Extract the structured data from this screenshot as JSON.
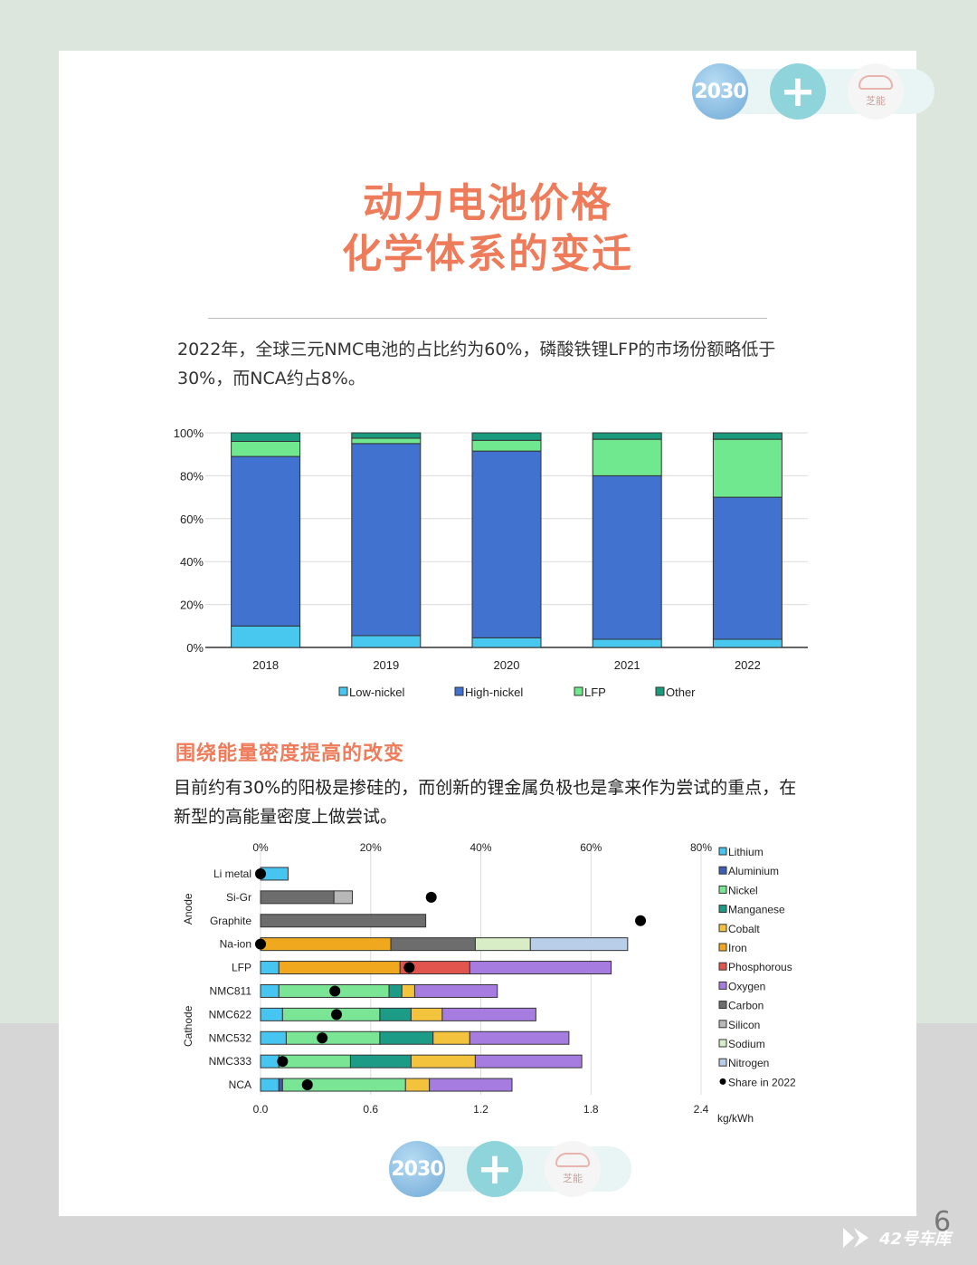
{
  "header": {
    "logos": [
      {
        "name": "logo-2030",
        "text": "2030"
      },
      {
        "name": "logo-plus",
        "text": "+"
      },
      {
        "name": "logo-brand",
        "text": "芝能"
      }
    ]
  },
  "title": {
    "line1": "动力电池价格",
    "line2": "化学体系的变迁"
  },
  "intro": "2022年，全球三元NMC电池的占比约为60%，磷酸铁锂LFP的市场份额略低于30%，而NCA约占8%。",
  "chart1": {
    "type": "bar",
    "stacked": true,
    "categories": [
      "2018",
      "2019",
      "2020",
      "2021",
      "2022"
    ],
    "series": [
      {
        "name": "Low-nickel",
        "color": "#48c8ef",
        "values": [
          10,
          5.5,
          4.5,
          3.8,
          3.8
        ]
      },
      {
        "name": "High-nickel",
        "color": "#4272cf",
        "values": [
          79,
          89.5,
          87,
          76.2,
          66.2
        ]
      },
      {
        "name": "LFP",
        "color": "#6fe88f",
        "values": [
          7,
          2.5,
          5,
          17,
          27
        ]
      },
      {
        "name": "Other",
        "color": "#1a9b7e",
        "values": [
          4,
          2.5,
          3.5,
          3,
          3
        ]
      }
    ],
    "yticks": [
      "0%",
      "20%",
      "40%",
      "60%",
      "80%",
      "100%"
    ],
    "ylim": [
      0,
      100
    ]
  },
  "section2": {
    "heading": "围绕能量密度提高的改变",
    "text": "目前约有30%的阳极是掺硅的，而创新的锂金属负极也是拿来作为尝试的重点，在新型的高能量密度上做尝试。"
  },
  "chart2": {
    "type": "bar",
    "orientation": "horizontal",
    "stacked": true,
    "bottom_ticks": [
      "0.0",
      "0.6",
      "1.2",
      "1.8",
      "2.4"
    ],
    "top_ticks": [
      "0%",
      "20%",
      "40%",
      "60%",
      "80%"
    ],
    "unit": "kg/kWh",
    "xlim": [
      0,
      2.4
    ],
    "share_lim": [
      0,
      80
    ],
    "groups": [
      {
        "label": "Anode",
        "rows": [
          "Li metal",
          "Si-Gr",
          "Graphite",
          "Na-ion"
        ]
      },
      {
        "label": "Cathode",
        "rows": [
          "LFP",
          "NMC811",
          "NMC622",
          "NMC532",
          "NMC333",
          "NCA"
        ]
      }
    ],
    "materials": [
      {
        "name": "Lithium",
        "color": "#46c5f0"
      },
      {
        "name": "Aluminium",
        "color": "#3a5fb5"
      },
      {
        "name": "Nickel",
        "color": "#79e595"
      },
      {
        "name": "Manganese",
        "color": "#1c9c87"
      },
      {
        "name": "Cobalt",
        "color": "#f4c33d"
      },
      {
        "name": "Iron",
        "color": "#f0a81e"
      },
      {
        "name": "Phosphorous",
        "color": "#e2554e"
      },
      {
        "name": "Oxygen",
        "color": "#a77ce0"
      },
      {
        "name": "Carbon",
        "color": "#6d6d6d"
      },
      {
        "name": "Silicon",
        "color": "#b8b8b8"
      },
      {
        "name": "Sodium",
        "color": "#d8ecc6"
      },
      {
        "name": "Nitrogen",
        "color": "#b9cfe9"
      }
    ],
    "share_legend": "Share in 2022",
    "rows": [
      {
        "name": "Li metal",
        "segments": [
          {
            "m": "Lithium",
            "v": 0.15
          }
        ],
        "share": 0
      },
      {
        "name": "Si-Gr",
        "segments": [
          {
            "m": "Carbon",
            "v": 0.4
          },
          {
            "m": "Silicon",
            "v": 0.1
          }
        ],
        "share": 31
      },
      {
        "name": "Graphite",
        "segments": [
          {
            "m": "Carbon",
            "v": 0.9
          }
        ],
        "share": 69
      },
      {
        "name": "Na-ion",
        "segments": [
          {
            "m": "Iron",
            "v": 0.71
          },
          {
            "m": "Carbon",
            "v": 0.46
          },
          {
            "m": "Sodium",
            "v": 0.3
          },
          {
            "m": "Nitrogen",
            "v": 0.53
          }
        ],
        "share": 0
      },
      {
        "name": "LFP",
        "segments": [
          {
            "m": "Lithium",
            "v": 0.1
          },
          {
            "m": "Iron",
            "v": 0.66
          },
          {
            "m": "Phosphorous",
            "v": 0.38
          },
          {
            "m": "Oxygen",
            "v": 0.77
          }
        ],
        "share": 27
      },
      {
        "name": "NMC811",
        "segments": [
          {
            "m": "Lithium",
            "v": 0.1
          },
          {
            "m": "Nickel",
            "v": 0.6
          },
          {
            "m": "Manganese",
            "v": 0.07
          },
          {
            "m": "Cobalt",
            "v": 0.07
          },
          {
            "m": "Oxygen",
            "v": 0.45
          }
        ],
        "share": 13.5
      },
      {
        "name": "NMC622",
        "segments": [
          {
            "m": "Lithium",
            "v": 0.12
          },
          {
            "m": "Nickel",
            "v": 0.53
          },
          {
            "m": "Manganese",
            "v": 0.17
          },
          {
            "m": "Cobalt",
            "v": 0.17
          },
          {
            "m": "Oxygen",
            "v": 0.51
          }
        ],
        "share": 13.8
      },
      {
        "name": "NMC532",
        "segments": [
          {
            "m": "Lithium",
            "v": 0.14
          },
          {
            "m": "Nickel",
            "v": 0.51
          },
          {
            "m": "Manganese",
            "v": 0.29
          },
          {
            "m": "Cobalt",
            "v": 0.2
          },
          {
            "m": "Oxygen",
            "v": 0.54
          }
        ],
        "share": 11.2
      },
      {
        "name": "NMC333",
        "segments": [
          {
            "m": "Lithium",
            "v": 0.1
          },
          {
            "m": "Nickel",
            "v": 0.39
          },
          {
            "m": "Manganese",
            "v": 0.33
          },
          {
            "m": "Cobalt",
            "v": 0.35
          },
          {
            "m": "Oxygen",
            "v": 0.58
          }
        ],
        "share": 4
      },
      {
        "name": "NCA",
        "segments": [
          {
            "m": "Lithium",
            "v": 0.1
          },
          {
            "m": "Aluminium",
            "v": 0.02
          },
          {
            "m": "Nickel",
            "v": 0.67
          },
          {
            "m": "Cobalt",
            "v": 0.13
          },
          {
            "m": "Oxygen",
            "v": 0.45
          }
        ],
        "share": 8.5
      }
    ]
  },
  "footer": {
    "page_number": "6",
    "watermark": "42号车库"
  }
}
